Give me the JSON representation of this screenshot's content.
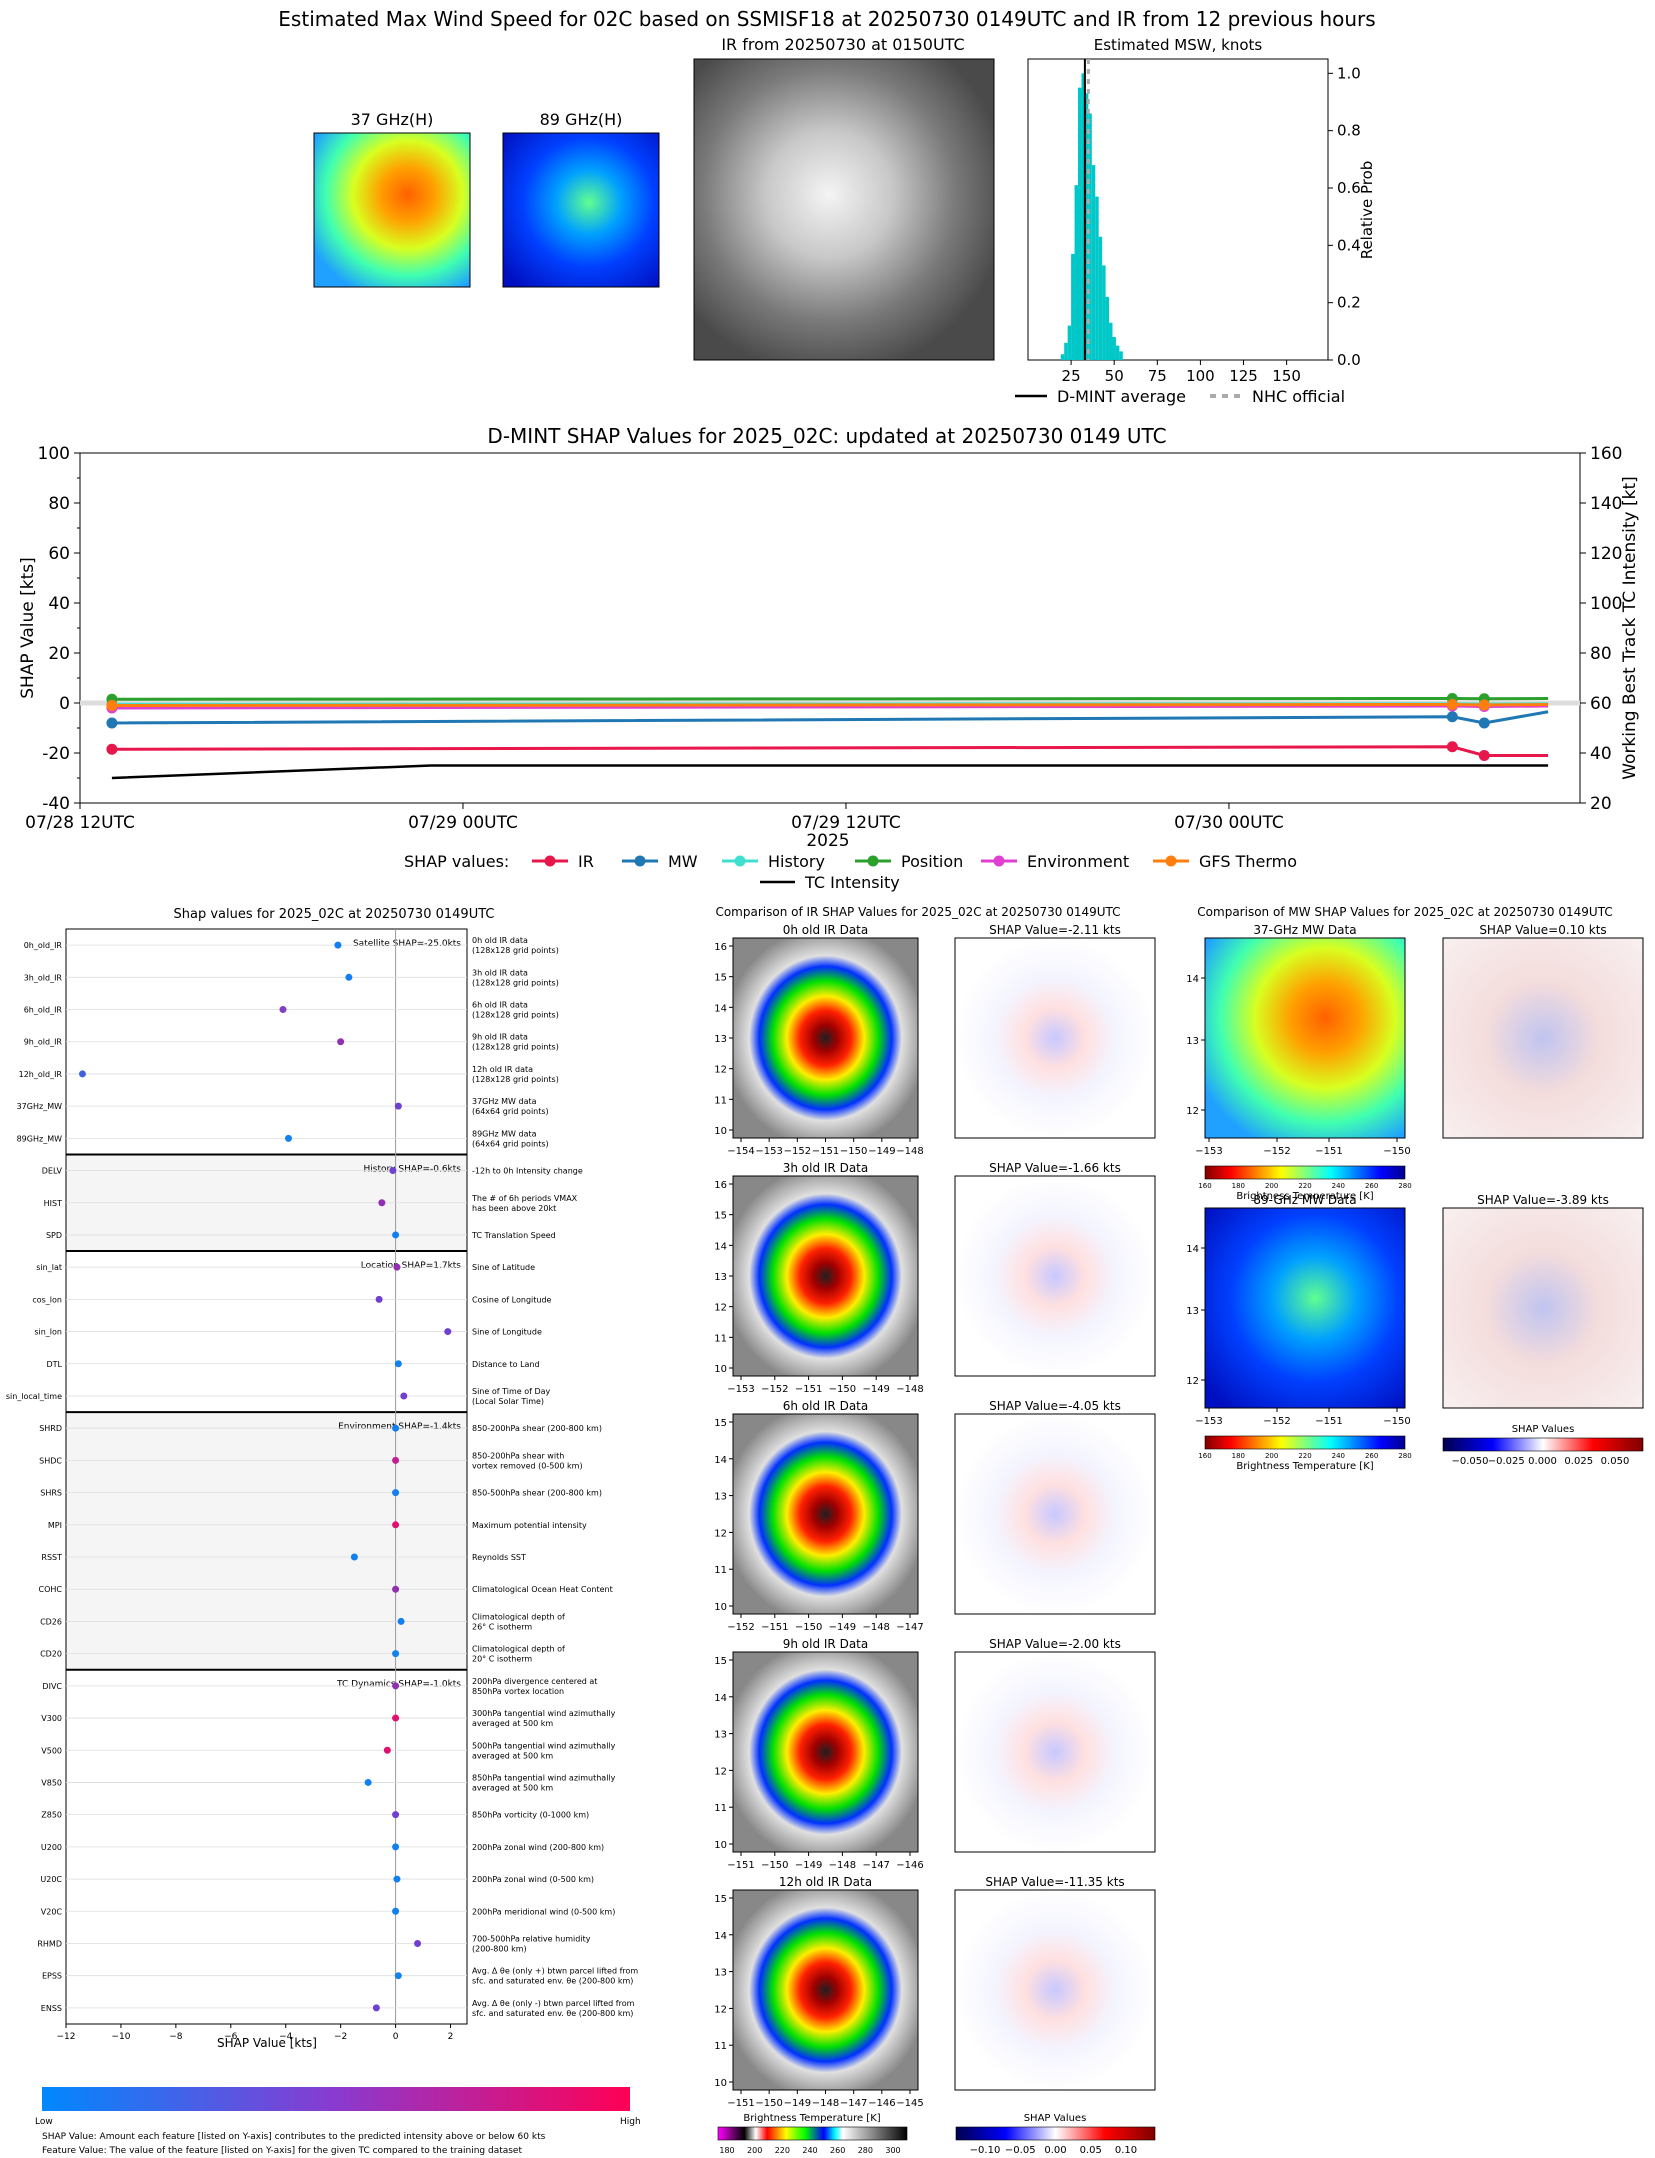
{
  "top": {
    "title": "Estimated Max Wind Speed for 02C based on SSMISF18 at 20250730 0149UTC and IR from 12 previous hours",
    "panels": {
      "mw37_title": "37 GHz(H)",
      "mw89_title": "89 GHz(H)",
      "ir_title": "IR from 20250730 at 0150UTC"
    },
    "msw_hist": {
      "title": "Estimated MSW, knots",
      "ylabel": "Relative Prob",
      "xticks": [
        "25",
        "50",
        "75",
        "100",
        "125",
        "150"
      ],
      "yticks": [
        "0.0",
        "0.2",
        "0.4",
        "0.6",
        "0.8",
        "1.0"
      ],
      "legend": [
        "D-MINT average",
        "NHC official"
      ],
      "bin_starts": [
        19,
        21,
        23,
        25,
        27,
        29,
        31,
        33,
        35,
        37,
        39,
        41,
        43,
        45,
        47,
        49,
        51,
        53
      ],
      "probs": [
        0.02,
        0.06,
        0.12,
        0.37,
        0.61,
        0.95,
        1.0,
        0.93,
        0.86,
        0.68,
        0.57,
        0.43,
        0.33,
        0.22,
        0.13,
        0.08,
        0.05,
        0.03
      ],
      "dmint_avg": 33,
      "nhc_official": 35,
      "bar_color": "#00c8c8"
    }
  },
  "timeseries": {
    "title": "D-MINT SHAP Values for 2025_02C: updated at 20250730 0149 UTC",
    "ylabel_left": "SHAP Value [kts]",
    "ylabel_right": "Working Best Track TC Intensity [kt]",
    "xlabel": "2025",
    "yticks_left": [
      "-40",
      "-20",
      "0",
      "20",
      "40",
      "60",
      "80",
      "100"
    ],
    "yticks_right": [
      "20",
      "40",
      "60",
      "80",
      "100",
      "120",
      "140",
      "160"
    ],
    "xticks": [
      "07/28 12UTC",
      "07/29 00UTC",
      "07/29 12UTC",
      "07/30 00UTC"
    ],
    "legend_prefix": "SHAP values:",
    "legend": [
      {
        "label": "IR",
        "color": "#e8174b"
      },
      {
        "label": "MW",
        "color": "#1f77b4"
      },
      {
        "label": "History",
        "color": "#40e0d0"
      },
      {
        "label": "Position",
        "color": "#2ca02c"
      },
      {
        "label": "Environment",
        "color": "#e040d0"
      },
      {
        "label": "GFS Thermo",
        "color": "#ff7f0e"
      }
    ],
    "intensity_label": "TC Intensity",
    "chart_data": {
      "type": "line",
      "x_hours_from_0728_12utc": [
        1,
        43,
        44,
        46
      ],
      "series": [
        {
          "name": "IR",
          "values": [
            -18.5,
            -17.5,
            -21.0,
            -21.0
          ]
        },
        {
          "name": "MW",
          "values": [
            -8.0,
            -5.5,
            -8.0,
            -3.5
          ]
        },
        {
          "name": "History",
          "values": [
            -0.5,
            -0.3,
            -0.4,
            -0.3
          ]
        },
        {
          "name": "Position",
          "values": [
            1.5,
            1.8,
            1.7,
            1.8
          ]
        },
        {
          "name": "Environment",
          "values": [
            -2.0,
            -1.2,
            -1.4,
            -1.2
          ]
        },
        {
          "name": "GFS Thermo",
          "values": [
            -1.0,
            -0.6,
            -0.8,
            -0.6
          ]
        }
      ],
      "intensity": {
        "x_hours": [
          1,
          11,
          22,
          33,
          46
        ],
        "values": [
          30,
          35,
          35,
          35,
          35
        ]
      }
    }
  },
  "shap_bee": {
    "title": "Shap values for 2025_02C at 20250730 0149UTC",
    "xlabel": "SHAP Value [kts]",
    "xticks": [
      "−12",
      "−10",
      "−8",
      "−6",
      "−4",
      "−2",
      "0",
      "2"
    ],
    "groups": [
      {
        "label": "Satellite SHAP=-25.0kts",
        "shaded": false,
        "start": 0,
        "count": 7
      },
      {
        "label": "History SHAP=-0.6kts",
        "shaded": true,
        "start": 7,
        "count": 3
      },
      {
        "label": "Location SHAP=1.7kts",
        "shaded": false,
        "start": 10,
        "count": 5
      },
      {
        "label": "Environment SHAP=-1.4kts",
        "shaded": true,
        "start": 15,
        "count": 8
      },
      {
        "label": "TC Dynamics SHAP=-1.0kts",
        "shaded": false,
        "start": 23,
        "count": 11
      }
    ],
    "features": [
      {
        "name": "0h_old_IR",
        "desc": [
          "0h old IR data",
          "(128x128 grid points)"
        ],
        "value": -2.1,
        "color": "#1280ee"
      },
      {
        "name": "3h_old_IR",
        "desc": [
          "3h old IR data",
          "(128x128 grid points)"
        ],
        "value": -1.7,
        "color": "#1280ee"
      },
      {
        "name": "6h_old_IR",
        "desc": [
          "6h old IR data",
          "(128x128 grid points)"
        ],
        "value": -4.1,
        "color": "#8040c0"
      },
      {
        "name": "9h_old_IR",
        "desc": [
          "9h old IR data",
          "(128x128 grid points)"
        ],
        "value": -2.0,
        "color": "#9030b0"
      },
      {
        "name": "12h_old_IR",
        "desc": [
          "12h old IR data",
          "(128x128 grid points)"
        ],
        "value": -11.4,
        "color": "#4060e0"
      },
      {
        "name": "37GHz_MW",
        "desc": [
          "37GHz MW data",
          "(64x64 grid points)"
        ],
        "value": 0.1,
        "color": "#7040d0"
      },
      {
        "name": "89GHz_MW",
        "desc": [
          "89GHz MW data",
          "(64x64 grid points)"
        ],
        "value": -3.9,
        "color": "#1280ee"
      },
      {
        "name": "DELV",
        "desc": [
          "-12h to 0h Intensity change"
        ],
        "value": -0.1,
        "color": "#7040d0"
      },
      {
        "name": "HIST",
        "desc": [
          "The # of 6h periods VMAX",
          "has been above 20kt"
        ],
        "value": -0.5,
        "color": "#9030b0"
      },
      {
        "name": "SPD",
        "desc": [
          "TC Translation Speed"
        ],
        "value": 0.0,
        "color": "#1280ee"
      },
      {
        "name": "sin_lat",
        "desc": [
          "Sine of Latitude"
        ],
        "value": 0.05,
        "color": "#9030b0"
      },
      {
        "name": "cos_lon",
        "desc": [
          "Cosine of Longitude"
        ],
        "value": -0.6,
        "color": "#7040d0"
      },
      {
        "name": "sin_lon",
        "desc": [
          "Sine of Longitude"
        ],
        "value": 1.9,
        "color": "#7040d0"
      },
      {
        "name": "DTL",
        "desc": [
          "Distance to Land"
        ],
        "value": 0.1,
        "color": "#1280ee"
      },
      {
        "name": "sin_local_time",
        "desc": [
          "Sine of Time of Day",
          "(Local Solar Time)"
        ],
        "value": 0.3,
        "color": "#7040d0"
      },
      {
        "name": "SHRD",
        "desc": [
          "850-200hPa shear (200-800 km)"
        ],
        "value": 0.0,
        "color": "#1280ee"
      },
      {
        "name": "SHDC",
        "desc": [
          "850-200hPa shear with",
          "vortex removed (0-500 km)"
        ],
        "value": 0.0,
        "color": "#c02090"
      },
      {
        "name": "SHRS",
        "desc": [
          "850-500hPa shear (200-800 km)"
        ],
        "value": 0.0,
        "color": "#1280ee"
      },
      {
        "name": "MPI",
        "desc": [
          "Maximum potential intensity"
        ],
        "value": 0.0,
        "color": "#e01070"
      },
      {
        "name": "RSST",
        "desc": [
          "Reynolds SST"
        ],
        "value": -1.5,
        "color": "#1280ee"
      },
      {
        "name": "COHC",
        "desc": [
          "Climatological Ocean Heat Content"
        ],
        "value": 0.0,
        "color": "#9030b0"
      },
      {
        "name": "CD26",
        "desc": [
          "Climatological depth of",
          "26° C isotherm"
        ],
        "value": 0.2,
        "color": "#1280ee"
      },
      {
        "name": "CD20",
        "desc": [
          "Climatological depth of",
          "20° C isotherm"
        ],
        "value": 0.0,
        "color": "#1280ee"
      },
      {
        "name": "DIVC",
        "desc": [
          "200hPa divergence centered at",
          "850hPa vortex location"
        ],
        "value": 0.0,
        "color": "#9030b0"
      },
      {
        "name": "V300",
        "desc": [
          "300hPa tangential wind azimuthally",
          "averaged at 500 km"
        ],
        "value": 0.0,
        "color": "#e01070"
      },
      {
        "name": "V500",
        "desc": [
          "500hPa tangential wind azimuthally",
          "averaged at 500 km"
        ],
        "value": -0.3,
        "color": "#e01070"
      },
      {
        "name": "V850",
        "desc": [
          "850hPa tangential wind azimuthally",
          "averaged at 500 km"
        ],
        "value": -1.0,
        "color": "#1280ee"
      },
      {
        "name": "Z850",
        "desc": [
          "850hPa vorticity (0-1000 km)"
        ],
        "value": 0.0,
        "color": "#7040d0"
      },
      {
        "name": "U200",
        "desc": [
          "200hPa zonal wind (200-800 km)"
        ],
        "value": 0.0,
        "color": "#1280ee"
      },
      {
        "name": "U20C",
        "desc": [
          "200hPa zonal wind (0-500 km)"
        ],
        "value": 0.05,
        "color": "#1280ee"
      },
      {
        "name": "V20C",
        "desc": [
          "200hPa meridional wind (0-500 km)"
        ],
        "value": 0.0,
        "color": "#1280ee"
      },
      {
        "name": "RHMD",
        "desc": [
          "700-500hPa relative humidity",
          "(200-800 km)"
        ],
        "value": 0.8,
        "color": "#7040d0"
      },
      {
        "name": "EPSS",
        "desc": [
          "Avg. Δ θe (only +) btwn parcel lifted from",
          "sfc. and saturated env. θe (200-800 km)"
        ],
        "value": 0.1,
        "color": "#1280ee"
      },
      {
        "name": "ENSS",
        "desc": [
          "Avg. Δ θe (only -) btwn parcel lifted from",
          "sfc. and saturated env. θe (200-800 km)"
        ],
        "value": -0.7,
        "color": "#7040d0"
      }
    ],
    "cbar_low": "Low",
    "cbar_high": "High",
    "note1": "SHAP Value: Amount each feature [listed on Y-axis] contributes to the predicted intensity above or below 60 kts",
    "note2": "Feature Value: The value of the feature [listed on Y-axis] for the given TC compared to the training dataset"
  },
  "ir_compare": {
    "title": "Comparison of IR SHAP Values for 2025_02C at 20250730 0149UTC",
    "rows": [
      {
        "data_title": "0h old IR Data",
        "shap_title": "SHAP Value=-2.11 kts",
        "xticks": [
          "−154",
          "−153",
          "−152",
          "−151",
          "−150",
          "−149",
          "−148"
        ],
        "yticks": [
          "10",
          "11",
          "12",
          "13",
          "14",
          "15",
          "16"
        ]
      },
      {
        "data_title": "3h old IR Data",
        "shap_title": "SHAP Value=-1.66 kts",
        "xticks": [
          "−153",
          "−152",
          "−151",
          "−150",
          "−149",
          "−148"
        ],
        "yticks": [
          "10",
          "11",
          "12",
          "13",
          "14",
          "15",
          "16"
        ]
      },
      {
        "data_title": "6h old IR Data",
        "shap_title": "SHAP Value=-4.05 kts",
        "xticks": [
          "−152",
          "−151",
          "−150",
          "−149",
          "−148",
          "−147"
        ],
        "yticks": [
          "10",
          "11",
          "12",
          "13",
          "14",
          "15"
        ]
      },
      {
        "data_title": "9h old IR Data",
        "shap_title": "SHAP Value=-2.00 kts",
        "xticks": [
          "−151",
          "−150",
          "−149",
          "−148",
          "−147",
          "−146"
        ],
        "yticks": [
          "10",
          "11",
          "12",
          "13",
          "14",
          "15"
        ]
      },
      {
        "data_title": "12h old IR Data",
        "shap_title": "SHAP Value=-11.35 kts",
        "xticks": [
          "−151",
          "−150",
          "−149",
          "−148",
          "−147",
          "−146",
          "−145"
        ],
        "yticks": [
          "10",
          "11",
          "12",
          "13",
          "14",
          "15"
        ]
      }
    ],
    "bt_cbar_label": "Brightness Temperature [K]",
    "bt_cbar_ticks": [
      "180",
      "200",
      "220",
      "240",
      "260",
      "280",
      "300"
    ],
    "shap_cbar_label": "SHAP Values",
    "shap_cbar_ticks": [
      "−0.10",
      "−0.05",
      "0.00",
      "0.05",
      "0.10"
    ]
  },
  "mw_compare": {
    "title": "Comparison of MW SHAP Values for 2025_02C at 20250730 0149UTC",
    "rows": [
      {
        "data_title": "37-GHz MW Data",
        "shap_title": "SHAP Value=0.10 kts"
      },
      {
        "data_title": "89-GHz MW Data",
        "shap_title": "SHAP Value=-3.89 kts"
      }
    ],
    "xticks": [
      "−153",
      "−152",
      "−151",
      "−150"
    ],
    "yticks": [
      "12",
      "13",
      "14"
    ],
    "bt_cbar_label": "Brightness Temperature [K]",
    "bt_cbar_ticks": [
      "160",
      "180",
      "200",
      "220",
      "240",
      "260",
      "280"
    ],
    "shap_cbar_label": "SHAP Values",
    "shap_cbar_ticks": [
      "−0.050",
      "−0.025",
      "0.000",
      "0.025",
      "0.050"
    ]
  }
}
